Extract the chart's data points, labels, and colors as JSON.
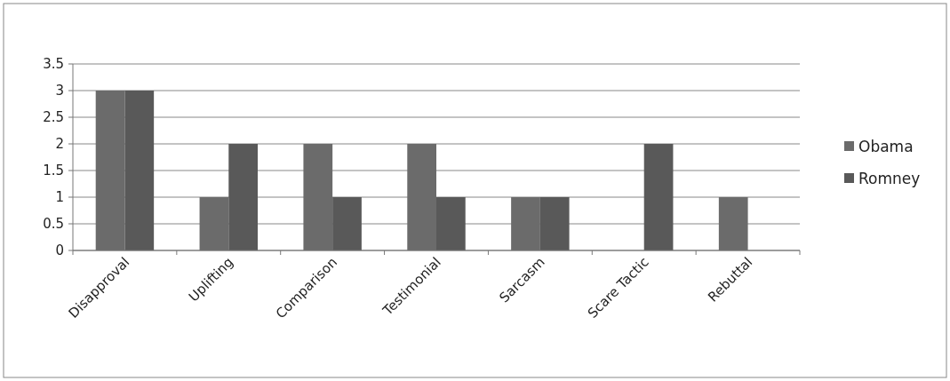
{
  "chart_data": {
    "type": "bar",
    "categories": [
      "Disapproval",
      "Uplifting",
      "Comparison",
      "Testimonial",
      "Sarcasm",
      "Scare Tactic",
      "Rebuttal"
    ],
    "series": [
      {
        "name": "Obama",
        "color": "#6b6b6b",
        "values": [
          3,
          1,
          2,
          2,
          1,
          0,
          1
        ]
      },
      {
        "name": "Romney",
        "color": "#595959",
        "values": [
          3,
          2,
          1,
          1,
          1,
          2,
          0
        ]
      }
    ],
    "ylim": [
      0,
      3.5
    ],
    "yticks": [
      0,
      0.5,
      1,
      1.5,
      2,
      2.5,
      3,
      3.5
    ],
    "grid": "y",
    "legend": "right"
  }
}
